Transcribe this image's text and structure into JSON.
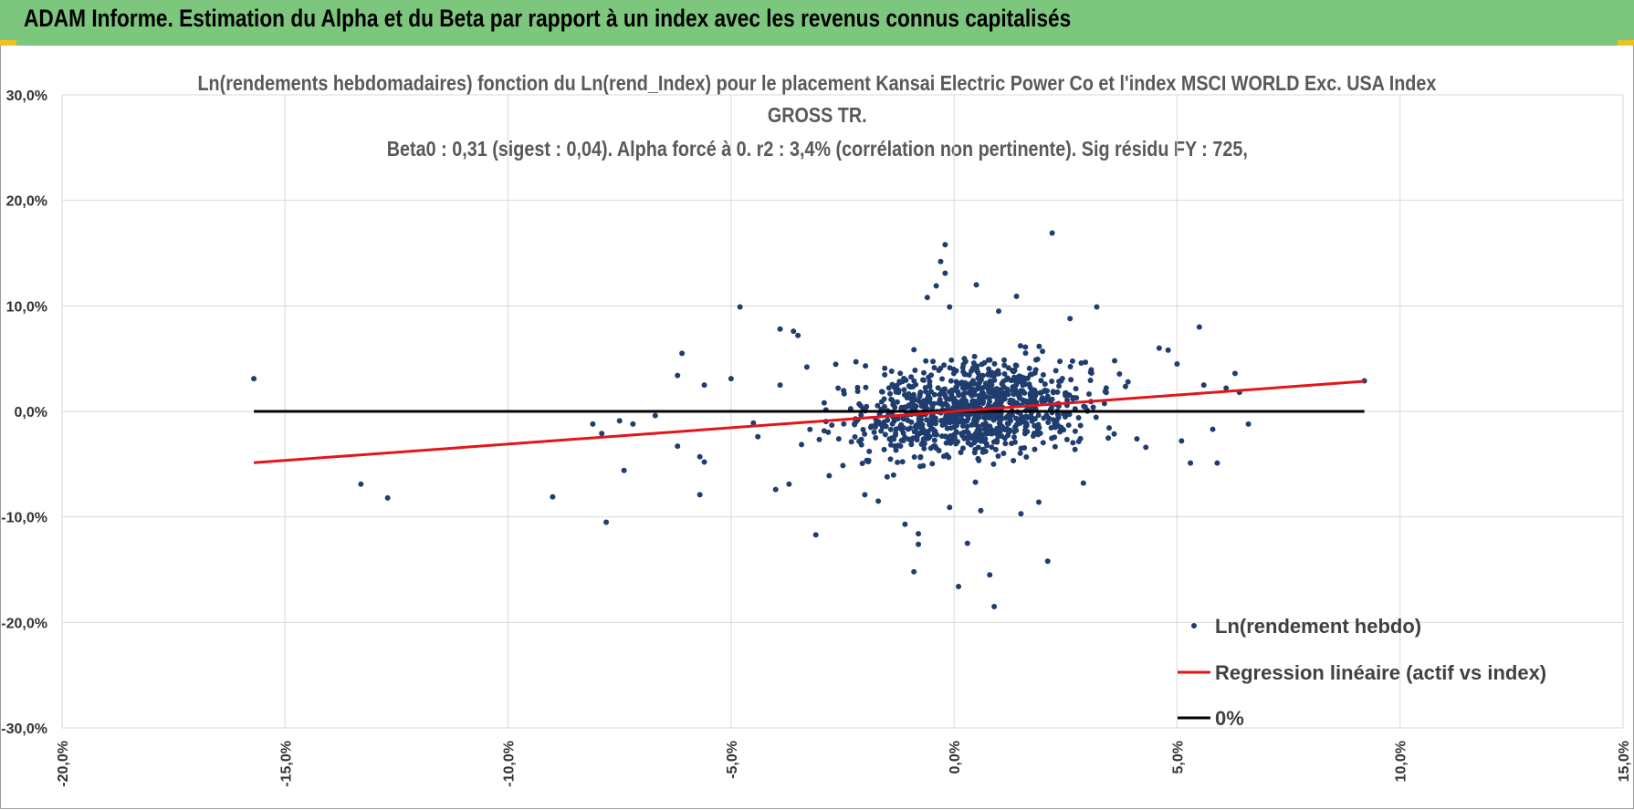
{
  "header": {
    "title": "ADAM Informe. Estimation du Alpha et du Beta par rapport à un index avec les revenus connus capitalisés"
  },
  "colors": {
    "header_bg": "#7dc67d",
    "points": "#1f3d6e",
    "regression": "#e3151a",
    "zero_line": "#000000",
    "grid": "#d9d9d9"
  },
  "chart_data": {
    "type": "scatter",
    "title_lines": [
      "Ln(rendements hebdomadaires) fonction du Ln(rend_Index) pour le placement Kansai Electric Power Co  et l'index MSCI WORLD Exc. USA Index",
      "GROSS TR.",
      "Beta0 : 0,31 (sigest : 0,04).  Alpha forcé à 0. r2 : 3,4% (corrélation non pertinente). Sig résidu FY : 725,"
    ],
    "xlabel": "",
    "ylabel": "",
    "xlim": [
      -0.2,
      0.15
    ],
    "ylim": [
      -0.3,
      0.3
    ],
    "x_ticks": [
      "-20,0%",
      "-15,0%",
      "-10,0%",
      "-5,0%",
      "0,0%",
      "5,0%",
      "10,0%",
      "15,0%"
    ],
    "y_ticks": [
      "30,0%",
      "20,0%",
      "10,0%",
      "0,0%",
      "-10,0%",
      "-20,0%",
      "-30,0%"
    ],
    "grid": true,
    "legend_position": "bottom-right",
    "legend": [
      "Ln(rendement hebdo)",
      "Regression linéaire (actif vs index)",
      "0%"
    ],
    "regression": {
      "slope": 0.31,
      "intercept": 0,
      "x_range": [
        -0.157,
        0.092
      ]
    },
    "zero_line": {
      "y": 0,
      "x_range": [
        -0.157,
        0.092
      ]
    },
    "series": [
      {
        "name": "Ln(rendement hebdo)",
        "points": [
          [
            -0.157,
            0.031
          ],
          [
            -0.133,
            -0.069
          ],
          [
            -0.127,
            -0.082
          ],
          [
            -0.09,
            -0.081
          ],
          [
            -0.081,
            -0.012
          ],
          [
            -0.079,
            -0.021
          ],
          [
            -0.078,
            -0.105
          ],
          [
            -0.075,
            -0.009
          ],
          [
            -0.074,
            -0.056
          ],
          [
            -0.072,
            -0.012
          ],
          [
            -0.067,
            -0.004
          ],
          [
            -0.062,
            0.034
          ],
          [
            -0.061,
            0.055
          ],
          [
            -0.062,
            -0.033
          ],
          [
            -0.057,
            -0.043
          ],
          [
            -0.057,
            -0.079
          ],
          [
            -0.056,
            -0.048
          ],
          [
            -0.056,
            0.025
          ],
          [
            -0.05,
            0.031
          ],
          [
            -0.048,
            0.099
          ],
          [
            -0.045,
            -0.011
          ],
          [
            -0.044,
            -0.024
          ],
          [
            -0.04,
            -0.074
          ],
          [
            -0.039,
            0.078
          ],
          [
            -0.036,
            0.076
          ],
          [
            -0.035,
            0.072
          ],
          [
            -0.039,
            0.025
          ],
          [
            -0.037,
            -0.069
          ],
          [
            -0.033,
            0.042
          ],
          [
            -0.031,
            -0.117
          ],
          [
            -0.028,
            -0.061
          ],
          [
            -0.026,
            0.022
          ],
          [
            -0.022,
            0.047
          ],
          [
            -0.02,
            -0.079
          ],
          [
            -0.017,
            -0.085
          ],
          [
            -0.015,
            -0.062
          ],
          [
            -0.011,
            -0.107
          ],
          [
            -0.009,
            -0.152
          ],
          [
            -0.008,
            -0.116
          ],
          [
            -0.008,
            -0.126
          ],
          [
            -0.006,
            0.108
          ],
          [
            -0.004,
            0.119
          ],
          [
            -0.003,
            0.142
          ],
          [
            -0.002,
            0.158
          ],
          [
            -0.002,
            0.131
          ],
          [
            -0.001,
            0.099
          ],
          [
            -0.001,
            -0.091
          ],
          [
            0.001,
            -0.166
          ],
          [
            0.003,
            -0.125
          ],
          [
            0.005,
            0.12
          ],
          [
            0.006,
            -0.094
          ],
          [
            0.008,
            -0.155
          ],
          [
            0.009,
            -0.185
          ],
          [
            0.01,
            0.095
          ],
          [
            0.014,
            0.109
          ],
          [
            0.015,
            -0.097
          ],
          [
            0.016,
            0.061
          ],
          [
            0.019,
            -0.086
          ],
          [
            0.021,
            -0.142
          ],
          [
            0.022,
            0.169
          ],
          [
            0.026,
            0.088
          ],
          [
            0.029,
            -0.068
          ],
          [
            0.032,
            0.099
          ],
          [
            0.036,
            0.048
          ],
          [
            0.039,
            0.028
          ],
          [
            0.041,
            -0.026
          ],
          [
            0.043,
            -0.034
          ],
          [
            0.046,
            0.06
          ],
          [
            0.048,
            0.058
          ],
          [
            0.05,
            0.045
          ],
          [
            0.051,
            -0.028
          ],
          [
            0.053,
            -0.049
          ],
          [
            0.055,
            0.08
          ],
          [
            0.056,
            0.025
          ],
          [
            0.058,
            -0.017
          ],
          [
            0.059,
            -0.049
          ],
          [
            0.061,
            0.022
          ],
          [
            0.063,
            0.036
          ],
          [
            0.064,
            0.018
          ],
          [
            0.066,
            -0.012
          ],
          [
            0.092,
            0.029
          ]
        ]
      }
    ]
  }
}
